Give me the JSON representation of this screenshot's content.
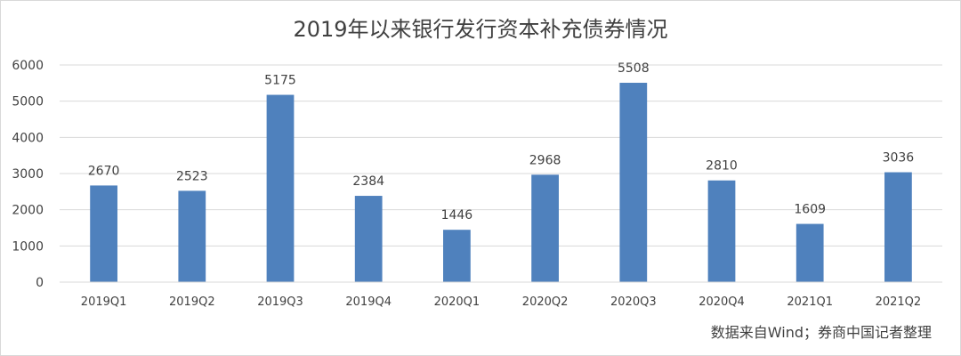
{
  "chart_data": {
    "type": "bar",
    "title": "2019年以来银行发行资本补充债券情况",
    "categories": [
      "2019Q1",
      "2019Q2",
      "2019Q3",
      "2019Q4",
      "2020Q1",
      "2020Q2",
      "2020Q3",
      "2020Q4",
      "2021Q1",
      "2021Q2"
    ],
    "values": [
      2670,
      2523,
      5175,
      2384,
      1446,
      2968,
      5508,
      2810,
      1609,
      3036
    ],
    "data_labels": [
      "2670",
      "2523",
      "5175",
      "2384",
      "1446",
      "2968",
      "5508",
      "2810",
      "1609",
      "3036"
    ],
    "ylim": [
      0,
      6000
    ],
    "yticks": [
      0,
      1000,
      2000,
      3000,
      4000,
      5000,
      6000
    ],
    "ytick_labels": [
      "0",
      "1000",
      "2000",
      "3000",
      "4000",
      "5000",
      "6000"
    ],
    "xlabel": "",
    "ylabel": "",
    "grid": true,
    "legend": false,
    "bar_color": "#4f81bd",
    "grid_color": "#d9d9d9",
    "source_note": "数据来自Wind；券商中国记者整理"
  }
}
